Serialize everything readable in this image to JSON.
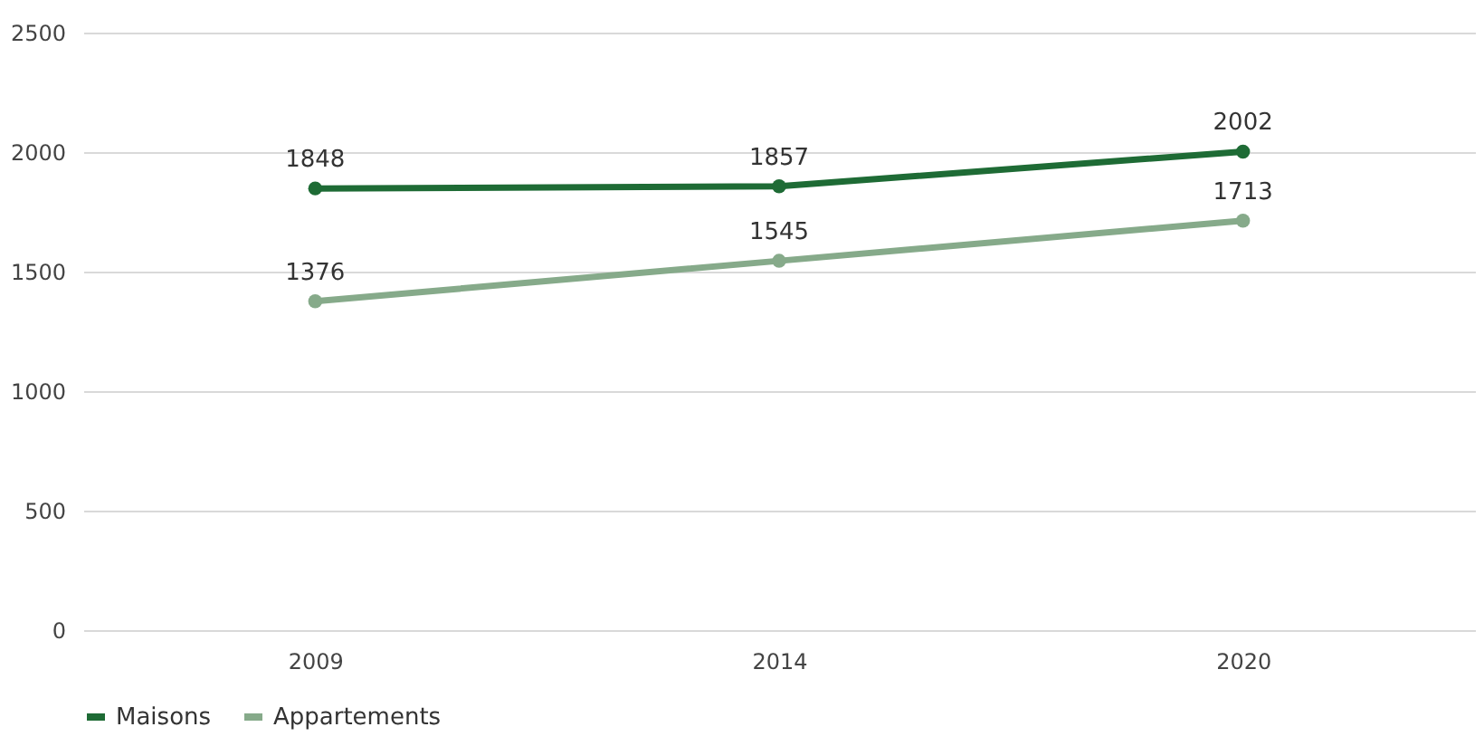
{
  "chart_data": {
    "type": "line",
    "categories": [
      "2009",
      "2014",
      "2020"
    ],
    "series": [
      {
        "name": "Maisons",
        "color": "#1e6b35",
        "values": [
          1848,
          1857,
          2002
        ]
      },
      {
        "name": "Appartements",
        "color": "#86aa8a",
        "values": [
          1376,
          1545,
          1713
        ]
      }
    ],
    "ylim": [
      0,
      2500
    ],
    "yticks": [
      0,
      500,
      1000,
      1500,
      2000,
      2500
    ],
    "grid": "y",
    "legend": "bottom",
    "marker": "circle",
    "line_style": "solid",
    "data_labels": true
  }
}
